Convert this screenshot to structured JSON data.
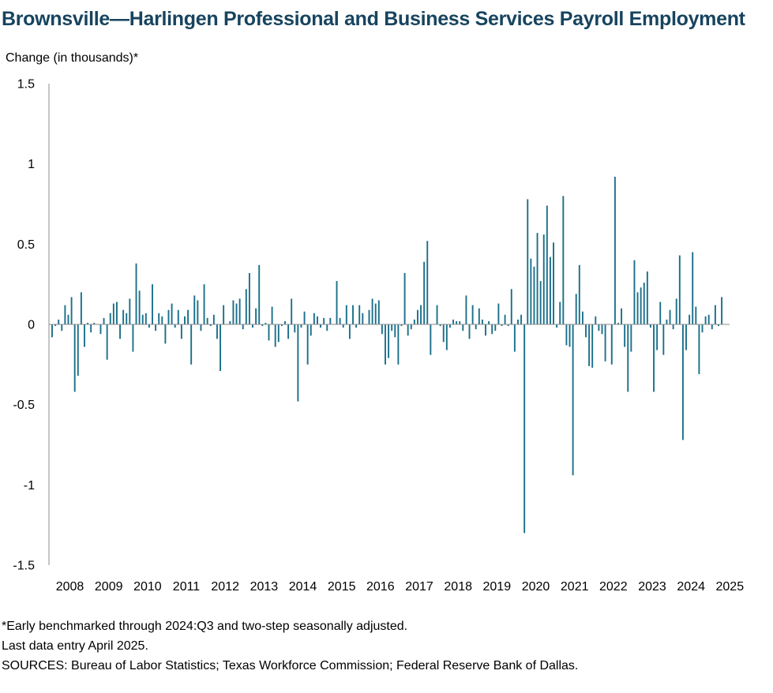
{
  "chart_data": {
    "type": "bar",
    "title": "Brownsville—Harlingen Professional and Business Services Payroll Employment",
    "ylabel": "Change (in thousands)*",
    "xlabel": "",
    "ylim": [
      -1.5,
      1.5
    ],
    "yticks": [
      1.5,
      1,
      0.5,
      0,
      -0.5,
      -1,
      -1.5
    ],
    "ytick_labels": [
      "1.5",
      "1",
      "0.5",
      "0",
      "-0.5",
      "-1",
      "-1.5"
    ],
    "xtick_labels": [
      "2008",
      "2009",
      "2010",
      "2011",
      "2012",
      "2013",
      "2014",
      "2015",
      "2016",
      "2017",
      "2018",
      "2019",
      "2020",
      "2021",
      "2022",
      "2023",
      "2024",
      "2025"
    ],
    "frequency": "monthly",
    "start": "2008-01",
    "end": "2025-04",
    "bar_color": "#1a6f8a",
    "grid": false,
    "values": [
      -0.08,
      -0.01,
      0.03,
      -0.04,
      0.12,
      0.06,
      0.17,
      -0.42,
      -0.32,
      0.2,
      -0.14,
      0.01,
      -0.05,
      0.01,
      0.0,
      -0.06,
      0.04,
      -0.22,
      0.07,
      0.13,
      0.14,
      -0.09,
      0.09,
      0.07,
      0.16,
      -0.17,
      0.38,
      0.21,
      0.06,
      0.07,
      -0.02,
      0.25,
      -0.04,
      0.07,
      0.05,
      -0.12,
      0.09,
      0.13,
      -0.02,
      0.09,
      -0.09,
      0.05,
      0.09,
      -0.25,
      0.18,
      0.15,
      -0.04,
      0.25,
      0.04,
      -0.01,
      0.06,
      -0.09,
      -0.29,
      0.12,
      0.0,
      0.02,
      0.15,
      0.13,
      0.16,
      -0.03,
      0.22,
      0.32,
      -0.02,
      0.1,
      0.37,
      -0.01,
      0.01,
      -0.1,
      0.11,
      -0.14,
      -0.11,
      -0.01,
      0.02,
      -0.09,
      0.16,
      -0.05,
      -0.48,
      -0.02,
      0.08,
      -0.25,
      -0.07,
      0.07,
      0.05,
      -0.02,
      0.04,
      -0.04,
      0.04,
      0.0,
      0.27,
      0.04,
      -0.02,
      0.12,
      -0.09,
      0.12,
      -0.02,
      0.12,
      0.07,
      0.0,
      0.09,
      0.16,
      0.13,
      0.15,
      -0.06,
      -0.25,
      -0.21,
      -0.04,
      -0.08,
      -0.25,
      -0.01,
      0.32,
      -0.07,
      -0.03,
      0.03,
      0.09,
      0.12,
      0.39,
      0.52,
      -0.19,
      0.0,
      0.12,
      -0.01,
      -0.11,
      -0.16,
      -0.02,
      0.03,
      0.02,
      0.02,
      -0.04,
      0.18,
      -0.09,
      0.12,
      -0.03,
      0.1,
      0.03,
      -0.07,
      0.02,
      -0.06,
      -0.04,
      0.13,
      -0.01,
      0.06,
      -0.01,
      0.22,
      -0.17,
      0.03,
      0.06,
      -1.3,
      0.78,
      0.41,
      0.36,
      0.57,
      0.27,
      0.56,
      0.74,
      0.42,
      0.51,
      -0.02,
      0.14,
      0.8,
      -0.13,
      -0.14,
      -0.94,
      0.19,
      0.37,
      0.08,
      -0.08,
      -0.26,
      -0.27,
      0.05,
      -0.04,
      -0.06,
      -0.23,
      0.0,
      -0.25,
      0.92,
      0.01,
      0.1,
      -0.14,
      -0.42,
      -0.17,
      0.4,
      0.2,
      0.23,
      0.26,
      0.33,
      -0.02,
      -0.42,
      -0.16,
      0.14,
      -0.19,
      0.03,
      0.09,
      -0.03,
      0.16,
      0.43,
      -0.72,
      -0.16,
      0.06,
      0.45,
      0.11,
      -0.31,
      -0.05,
      0.05,
      0.06,
      -0.03,
      0.12,
      -0.01,
      0.17
    ]
  },
  "footnotes": {
    "note1": "*Early benchmarked through 2024:Q3 and two-step seasonally adjusted.",
    "note2": "Last data entry April 2025.",
    "note3": "SOURCES:  Bureau of Labor Statistics;  Texas Workforce Commission;  Federal Reserve Bank of Dallas."
  }
}
